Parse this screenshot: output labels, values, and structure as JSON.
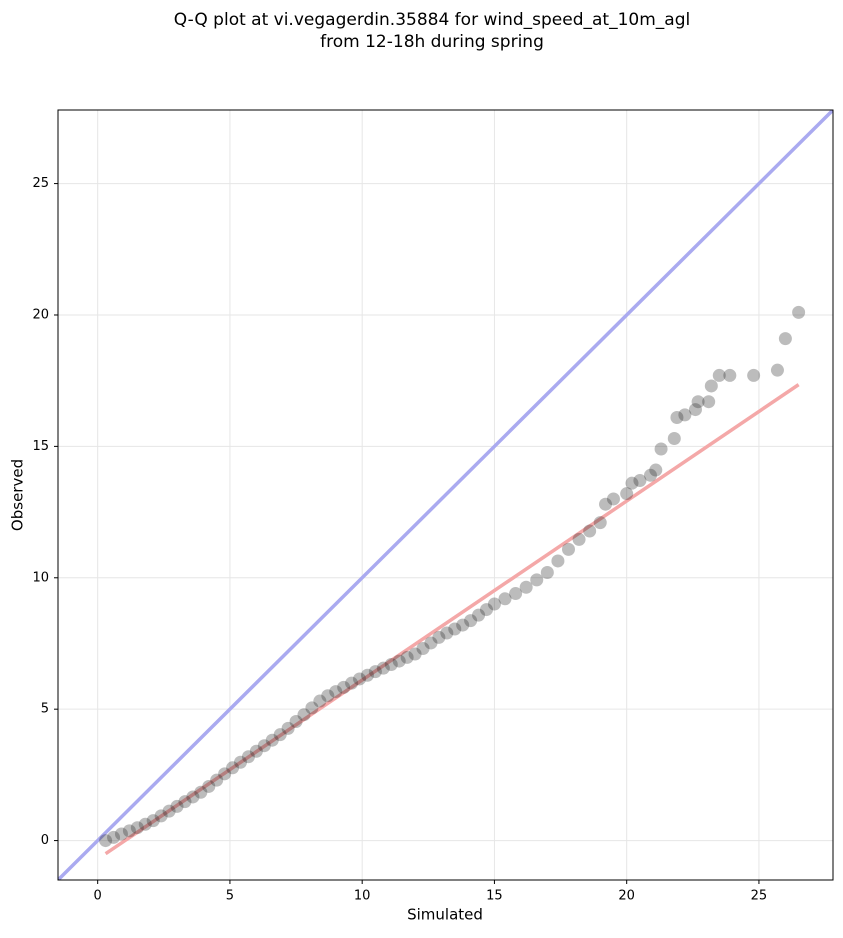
{
  "chart_data": {
    "type": "scatter",
    "title": [
      "Q-Q plot at vi.vegagerdin.35884 for wind_speed_at_10m_agl",
      "from 12-18h during spring"
    ],
    "x_label": "Simulated",
    "y_label": "Observed",
    "xlim": [
      -1.5,
      27.8
    ],
    "ylim": [
      -1.5,
      27.8
    ],
    "xticks": [
      0,
      5,
      10,
      15,
      20,
      25
    ],
    "yticks": [
      0,
      5,
      10,
      15,
      20,
      25
    ],
    "grid": true,
    "point_color": "#222222",
    "alpha": 0.3,
    "x": [
      0.3,
      0.6,
      0.9,
      1.2,
      1.5,
      1.8,
      2.1,
      2.4,
      2.7,
      3.0,
      3.3,
      3.6,
      3.9,
      4.2,
      4.5,
      4.8,
      5.1,
      5.4,
      5.7,
      6.0,
      6.3,
      6.6,
      6.9,
      7.2,
      7.5,
      7.8,
      8.1,
      8.4,
      8.7,
      9.0,
      9.3,
      9.6,
      9.9,
      10.2,
      10.5,
      10.8,
      11.1,
      11.4,
      11.7,
      12.0,
      12.3,
      12.6,
      12.9,
      13.2,
      13.5,
      13.8,
      14.1,
      14.4,
      14.7,
      15.0,
      15.4,
      15.8,
      16.2,
      16.6,
      17.0,
      17.4,
      17.8,
      18.2,
      18.6,
      19.0,
      19.2,
      19.5,
      20.0,
      20.2,
      20.5,
      20.9,
      21.1,
      21.3,
      21.8,
      21.9,
      22.2,
      22.6,
      22.7,
      23.1,
      23.2,
      23.5,
      23.9,
      24.8,
      25.7,
      26.0,
      26.5
    ],
    "y": [
      0,
      0.12,
      0.25,
      0.37,
      0.49,
      0.62,
      0.76,
      0.94,
      1.12,
      1.3,
      1.48,
      1.66,
      1.84,
      2.06,
      2.3,
      2.54,
      2.77,
      2.98,
      3.19,
      3.4,
      3.61,
      3.82,
      4.03,
      4.27,
      4.53,
      4.79,
      5.05,
      5.31,
      5.51,
      5.67,
      5.83,
      5.99,
      6.15,
      6.29,
      6.43,
      6.56,
      6.7,
      6.83,
      6.97,
      7.1,
      7.31,
      7.52,
      7.73,
      7.9,
      8.05,
      8.2,
      8.37,
      8.58,
      8.79,
      9.0,
      9.2,
      9.4,
      9.64,
      9.92,
      10.2,
      10.64,
      11.08,
      11.46,
      11.78,
      12.1,
      12.8,
      13.0,
      13.2,
      13.6,
      13.7,
      13.9,
      14.1,
      14.9,
      15.3,
      16.1,
      16.2,
      16.4,
      16.7,
      16.7,
      17.3,
      17.7,
      17.7,
      17.7,
      17.9,
      19.1,
      20.1
    ],
    "lines": [
      {
        "color": "#aaaaf0",
        "x": [
          -1.5,
          27.8
        ],
        "y": [
          -1.5,
          27.8
        ]
      },
      {
        "color": "#f4a8a8",
        "x": [
          0.3,
          26.5
        ],
        "y": [
          -0.5,
          17.35
        ]
      }
    ]
  }
}
